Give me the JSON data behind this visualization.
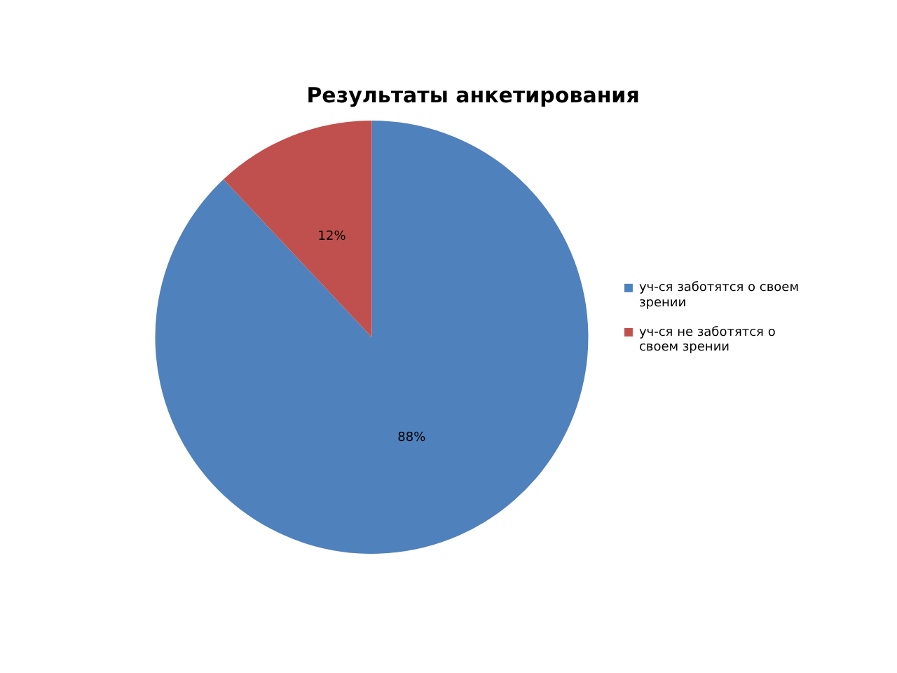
{
  "chart_data": {
    "type": "pie",
    "title": "Результаты анкетирования",
    "categories": [
      "уч-ся заботятся о своем зрении",
      "уч-ся не заботятся о своем зрении"
    ],
    "values": [
      88,
      12
    ],
    "colors": [
      "#4f81bd",
      "#c0504d"
    ],
    "value_labels": [
      "88%",
      "12%"
    ],
    "legend": "right"
  }
}
